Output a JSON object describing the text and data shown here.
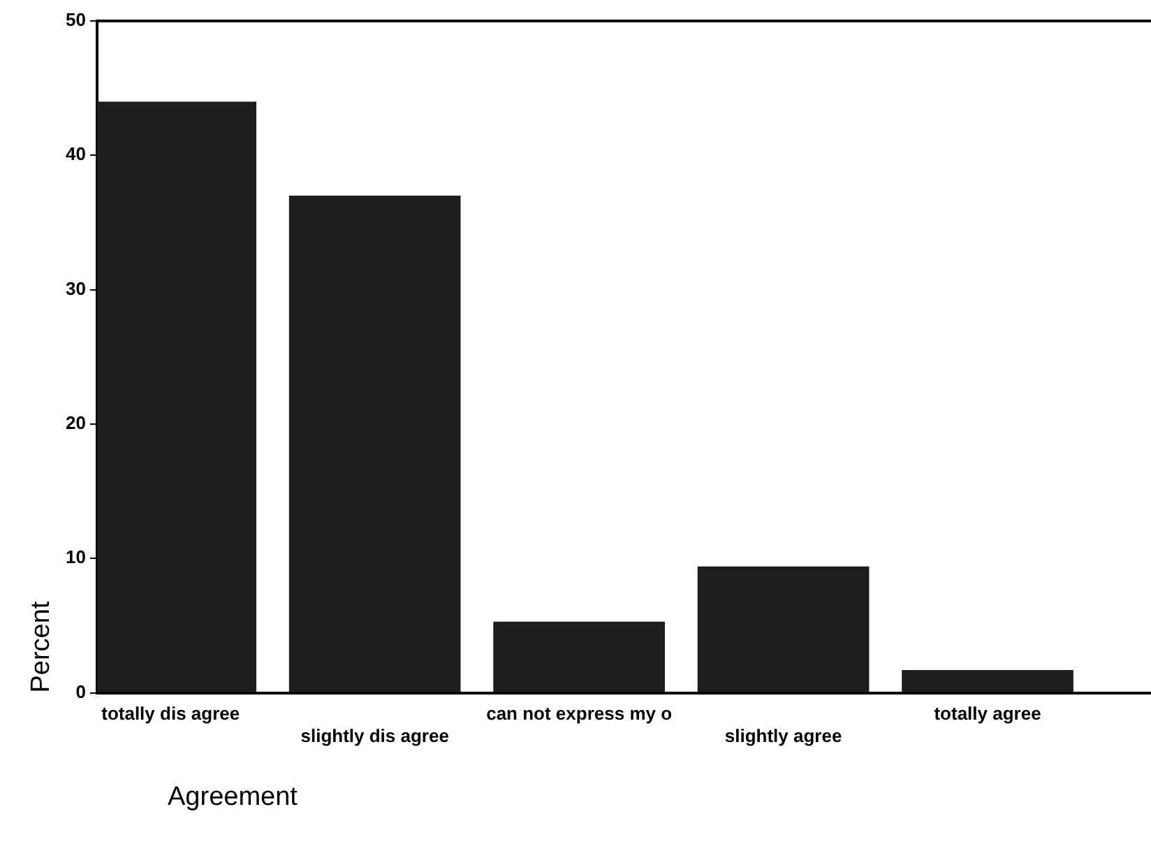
{
  "chart_data": {
    "type": "bar",
    "xlabel": "Agreement",
    "ylabel": "Percent",
    "categories": [
      "totally dis agree",
      "slightly dis agree",
      "can not express my o",
      "slightly agree",
      "totally agree"
    ],
    "values": [
      44,
      37,
      5.3,
      9.4,
      1.7
    ],
    "color": "#1e1e1e",
    "ylim": [
      0,
      50
    ],
    "yticks": [
      0,
      10,
      20,
      30,
      40,
      50
    ],
    "grid": false,
    "legend": false
  }
}
